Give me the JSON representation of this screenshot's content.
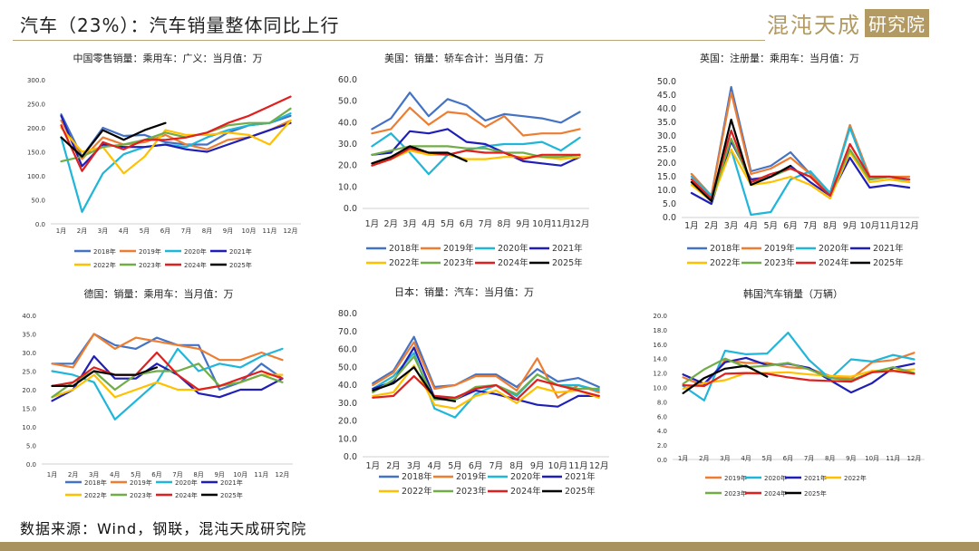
{
  "header": {
    "title": "汽车（23%）：汽车销量整体同比上行",
    "logo_text": "混沌天成",
    "logo_box_text": "研究院"
  },
  "source": "数据来源：Wind，钢联，混沌天成研究院",
  "colors": {
    "2018年": "#4472c4",
    "2019年": "#ed7d31",
    "2020年": "#1fb6d9",
    "2021年": "#1f1fb8",
    "2022年": "#ffc000",
    "2023年": "#70ad47",
    "2024年": "#e01f1f",
    "2025年": "#000000"
  },
  "chart_data": [
    {
      "type": "line",
      "title": "中国零售销量：乘用车：广义：当月值：万",
      "categories": [
        "1月",
        "2月",
        "3月",
        "4月",
        "5月",
        "6月",
        "7月",
        "8月",
        "9月",
        "10月",
        "11月",
        "12月"
      ],
      "yticks": [
        "0.0",
        "50.0",
        "100.0",
        "150.0",
        "200.0",
        "250.0",
        "300.0"
      ],
      "ylim": [
        0,
        300
      ],
      "legend": "bottom",
      "series": [
        {
          "name": "2018年",
          "values": [
            228,
            140,
            200,
            183,
            185,
            170,
            165,
            165,
            190,
            205,
            210,
            225
          ]
        },
        {
          "name": "2019年",
          "values": [
            215,
            135,
            180,
            165,
            170,
            185,
            165,
            155,
            175,
            180,
            195,
            215
          ]
        },
        {
          "name": "2020年",
          "values": [
            180,
            25,
            105,
            145,
            160,
            165,
            160,
            180,
            195,
            205,
            210,
            230
          ]
        },
        {
          "name": "2021年",
          "values": [
            225,
            120,
            165,
            160,
            160,
            165,
            155,
            150,
            165,
            180,
            195,
            210
          ]
        },
        {
          "name": "2022年",
          "values": [
            200,
            150,
            160,
            105,
            140,
            195,
            185,
            185,
            190,
            185,
            165,
            215
          ]
        },
        {
          "name": "2023年",
          "values": [
            130,
            140,
            160,
            165,
            175,
            190,
            180,
            190,
            205,
            210,
            210,
            240
          ]
        },
        {
          "name": "2024年",
          "values": [
            205,
            110,
            170,
            155,
            175,
            175,
            180,
            190,
            210,
            225,
            245,
            265
          ]
        },
        {
          "name": "2025年",
          "values": [
            180,
            140,
            195,
            175,
            195,
            210,
            null,
            null,
            null,
            null,
            null,
            null
          ]
        }
      ]
    },
    {
      "type": "line",
      "title": "美国：销量：轿车合计：当月值：万",
      "categories": [
        "1月",
        "2月",
        "3月",
        "4月",
        "5月",
        "6月",
        "7月",
        "8月",
        "9月",
        "10月",
        "11月",
        "12月"
      ],
      "yticks": [
        "0.0",
        "10.0",
        "20.0",
        "30.0",
        "40.0",
        "50.0",
        "60.0"
      ],
      "ylim": [
        0,
        60
      ],
      "legend": "bottom",
      "series": [
        {
          "name": "2018年",
          "values": [
            37,
            42,
            54,
            43,
            51,
            48,
            41,
            44,
            43,
            42,
            40,
            45
          ]
        },
        {
          "name": "2019年",
          "values": [
            35,
            37,
            47,
            39,
            45,
            44,
            38,
            43,
            34,
            35,
            35,
            37
          ]
        },
        {
          "name": "2020年",
          "values": [
            29,
            35,
            26,
            16,
            25,
            27,
            29,
            30,
            30,
            31,
            27,
            33
          ]
        },
        {
          "name": "2021年",
          "values": [
            25,
            26,
            36,
            35,
            37,
            31,
            30,
            26,
            22,
            21,
            20,
            24
          ]
        },
        {
          "name": "2022年",
          "values": [
            21,
            23,
            27,
            25,
            25,
            23,
            23,
            24,
            24,
            24,
            23,
            24
          ]
        },
        {
          "name": "2023年",
          "values": [
            25,
            27,
            29,
            29,
            29,
            28,
            28,
            26,
            26,
            24,
            24,
            25
          ]
        },
        {
          "name": "2024年",
          "values": [
            20,
            23,
            28,
            26,
            25,
            27,
            26,
            26,
            23,
            25,
            25,
            25
          ]
        },
        {
          "name": "2025年",
          "values": [
            21,
            24,
            29,
            26,
            26,
            22,
            null,
            null,
            null,
            null,
            null,
            null
          ]
        }
      ]
    },
    {
      "type": "line",
      "title": "英国：注册量：乘用车：当月值：万",
      "categories": [
        "1月",
        "2月",
        "3月",
        "4月",
        "5月",
        "6月",
        "7月",
        "8月",
        "9月",
        "10月",
        "11月",
        "12月"
      ],
      "yticks": [
        "0.0",
        "5.0",
        "10.0",
        "15.0",
        "20.0",
        "25.0",
        "30.0",
        "35.0",
        "40.0",
        "45.0",
        "50.0"
      ],
      "ylim": [
        0,
        50
      ],
      "legend": "bottom",
      "series": [
        {
          "name": "2018年",
          "values": [
            16,
            8,
            48,
            17,
            19,
            24,
            16,
            9,
            34,
            15,
            15,
            14
          ]
        },
        {
          "name": "2019年",
          "values": [
            16,
            8,
            46,
            16,
            18,
            22,
            16,
            9,
            34,
            15,
            15,
            15
          ]
        },
        {
          "name": "2020年",
          "values": [
            15,
            8,
            25,
            1,
            2,
            14,
            17,
            9,
            33,
            14,
            15,
            13
          ]
        },
        {
          "name": "2021年",
          "values": [
            9,
            5,
            28,
            14,
            15,
            19,
            13,
            8,
            22,
            11,
            12,
            11
          ]
        },
        {
          "name": "2022年",
          "values": [
            12,
            6,
            25,
            12,
            13,
            15,
            12,
            7,
            24,
            13,
            14,
            13
          ]
        },
        {
          "name": "2023年",
          "values": [
            13,
            6,
            29,
            13,
            15,
            18,
            15,
            8,
            25,
            14,
            15,
            14
          ]
        },
        {
          "name": "2024年",
          "values": [
            14,
            7,
            32,
            13,
            16,
            18,
            15,
            8,
            27,
            15,
            15,
            14
          ]
        },
        {
          "name": "2025年",
          "values": [
            13,
            6,
            36,
            12,
            15,
            19,
            null,
            null,
            null,
            null,
            null,
            null
          ]
        }
      ]
    },
    {
      "type": "line",
      "title": "德国：销量：乘用车：当月值：万",
      "categories": [
        "1月",
        "2月",
        "3月",
        "4月",
        "5月",
        "6月",
        "7月",
        "8月",
        "9月",
        "10月",
        "11月",
        "12月"
      ],
      "yticks": [
        "0.0",
        "5.0",
        "10.0",
        "15.0",
        "20.0",
        "25.0",
        "30.0",
        "35.0",
        "40.0"
      ],
      "ylim": [
        0,
        40
      ],
      "legend": "bottom",
      "series": [
        {
          "name": "2018年",
          "values": [
            27,
            27,
            35,
            32,
            31,
            34,
            32,
            32,
            20,
            22,
            27,
            23
          ]
        },
        {
          "name": "2019年",
          "values": [
            27,
            26,
            35,
            31,
            34,
            33,
            32,
            31,
            28,
            28,
            30,
            28
          ]
        },
        {
          "name": "2020年",
          "values": [
            25,
            24,
            22,
            12,
            17,
            22,
            31,
            25,
            27,
            26,
            29,
            31
          ]
        },
        {
          "name": "2021年",
          "values": [
            17,
            20,
            29,
            23,
            23,
            27,
            24,
            19,
            18,
            20,
            20,
            23
          ]
        },
        {
          "name": "2022年",
          "values": [
            18,
            20,
            24,
            18,
            20,
            22,
            20,
            20,
            21,
            22,
            24,
            24
          ]
        },
        {
          "name": "2023年",
          "values": [
            18,
            22,
            25,
            20,
            24,
            25,
            25,
            27,
            21,
            22,
            24,
            22
          ]
        },
        {
          "name": "2024年",
          "values": [
            21,
            22,
            26,
            24,
            24,
            30,
            24,
            20,
            21,
            23,
            25,
            23
          ]
        },
        {
          "name": "2025年",
          "values": [
            21,
            21,
            25,
            24,
            24,
            26,
            null,
            null,
            null,
            null,
            null,
            null
          ]
        }
      ]
    },
    {
      "type": "line",
      "title": "日本：销量：汽车：当月值：万",
      "categories": [
        "1月",
        "2月",
        "3月",
        "4月",
        "5月",
        "6月",
        "7月",
        "8月",
        "9月",
        "10月",
        "11月",
        "12月"
      ],
      "yticks": [
        "0.0",
        "10.0",
        "20.0",
        "30.0",
        "40.0",
        "50.0",
        "60.0",
        "70.0",
        "80.0"
      ],
      "ylim": [
        0,
        80
      ],
      "legend": "bottom",
      "series": [
        {
          "name": "2018年",
          "values": [
            41,
            48,
            67,
            39,
            40,
            46,
            46,
            39,
            49,
            42,
            44,
            39
          ]
        },
        {
          "name": "2019年",
          "values": [
            40,
            47,
            64,
            38,
            40,
            45,
            45,
            37,
            55,
            33,
            40,
            36
          ]
        },
        {
          "name": "2020年",
          "values": [
            38,
            45,
            58,
            27,
            22,
            35,
            40,
            34,
            46,
            40,
            40,
            37
          ]
        },
        {
          "name": "2021年",
          "values": [
            38,
            42,
            61,
            33,
            32,
            37,
            35,
            32,
            29,
            28,
            34,
            34
          ]
        },
        {
          "name": "2022年",
          "values": [
            34,
            36,
            51,
            29,
            27,
            34,
            37,
            30,
            39,
            36,
            37,
            33
          ]
        },
        {
          "name": "2023年",
          "values": [
            36,
            43,
            56,
            32,
            32,
            39,
            40,
            35,
            46,
            40,
            38,
            38
          ]
        },
        {
          "name": "2024年",
          "values": [
            33,
            34,
            45,
            34,
            33,
            38,
            40,
            32,
            43,
            40,
            37,
            34
          ]
        },
        {
          "name": "2025年",
          "values": [
            37,
            41,
            50,
            33,
            31,
            null,
            null,
            null,
            null,
            null,
            null,
            null
          ]
        }
      ]
    },
    {
      "type": "line",
      "title": "韩国汽车销量（万辆）",
      "categories": [
        "1月",
        "2月",
        "3月",
        "4月",
        "5月",
        "6月",
        "7月",
        "8月",
        "9月",
        "10月",
        "11月",
        "12月"
      ],
      "yticks": [
        "0.0",
        "2.0",
        "4.0",
        "6.0",
        "8.0",
        "10.0",
        "12.0",
        "14.0",
        "16.0",
        "18.0",
        "20.0"
      ],
      "ylim": [
        0,
        20
      ],
      "legend": "bottom",
      "series": [
        {
          "name": "2019年",
          "values": [
            11.4,
            10.2,
            13.8,
            13.4,
            13.4,
            12.8,
            12.6,
            11.6,
            11.2,
            13.5,
            13.8,
            14.8
          ]
        },
        {
          "name": "2020年",
          "values": [
            10.2,
            8.2,
            15.1,
            14.6,
            14.7,
            17.6,
            13.8,
            11.2,
            13.9,
            13.6,
            14.5,
            13.9
          ]
        },
        {
          "name": "2021年",
          "values": [
            11.8,
            10.5,
            13.5,
            14.1,
            13.1,
            13.3,
            12.7,
            11.0,
            9.3,
            10.6,
            12.7,
            13.3
          ]
        },
        {
          "name": "2022年",
          "values": [
            9.8,
            10.6,
            11.0,
            12.0,
            12.0,
            12.1,
            11.8,
            11.6,
            11.5,
            12.3,
            12.3,
            12.5
          ]
        },
        {
          "name": "2023年",
          "values": [
            10.5,
            12.5,
            14.0,
            12.8,
            13.0,
            13.4,
            12.5,
            11.3,
            11.0,
            12.1,
            12.8,
            12.0
          ]
        },
        {
          "name": "2024年",
          "values": [
            10.3,
            10.2,
            11.9,
            12.0,
            11.9,
            11.4,
            11.0,
            10.9,
            10.8,
            12.1,
            12.3,
            11.9
          ]
        },
        {
          "name": "2025年",
          "values": [
            9.2,
            11.3,
            12.6,
            13.0,
            11.5,
            null,
            null,
            null,
            null,
            null,
            null,
            null
          ]
        }
      ]
    }
  ]
}
